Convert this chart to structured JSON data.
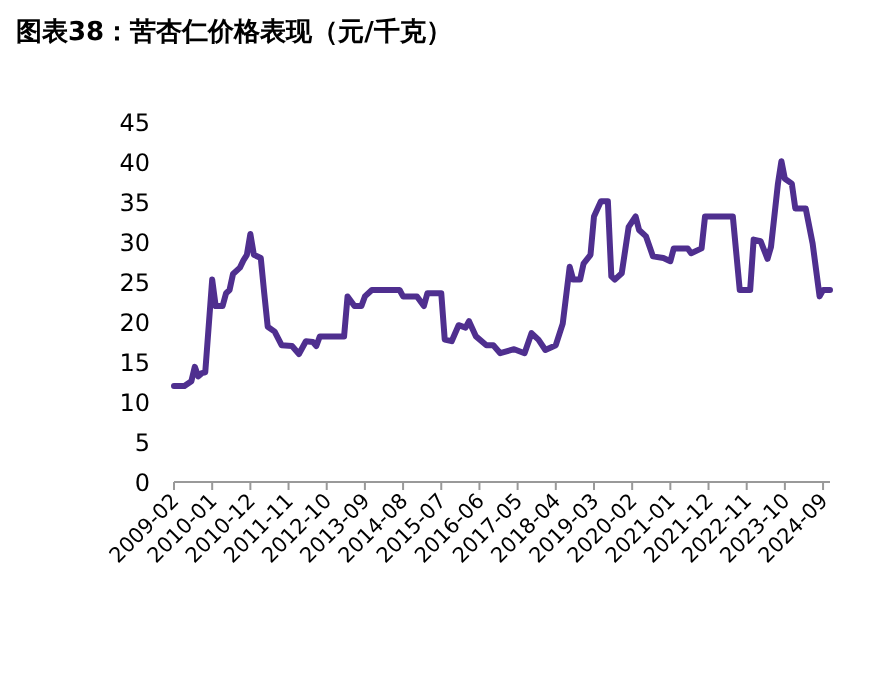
{
  "chart_data": {
    "type": "line",
    "title": "图表38：苦杏仁价格表现（元/千克）",
    "x": [
      "2009-02",
      "2009-05",
      "2009-07",
      "2009-08",
      "2009-09",
      "2009-10",
      "2009-11",
      "2010-01",
      "2010-02",
      "2010-04",
      "2010-05",
      "2010-06",
      "2010-07",
      "2010-09",
      "2010-10",
      "2010-11",
      "2010-12",
      "2011-01",
      "2011-03",
      "2011-04",
      "2011-05",
      "2011-07",
      "2011-09",
      "2011-12",
      "2012-02",
      "2012-04",
      "2012-06",
      "2012-07",
      "2012-08",
      "2013-03",
      "2013-04",
      "2013-06",
      "2013-08",
      "2013-09",
      "2013-11",
      "2014-07",
      "2014-08",
      "2014-12",
      "2015-02",
      "2015-03",
      "2015-07",
      "2015-08",
      "2015-10",
      "2015-12",
      "2016-02",
      "2016-03",
      "2016-05",
      "2016-08",
      "2016-10",
      "2016-12",
      "2017-04",
      "2017-07",
      "2017-09",
      "2017-11",
      "2018-01",
      "2018-04",
      "2018-06",
      "2018-08",
      "2018-09",
      "2018-11",
      "2018-12",
      "2019-02",
      "2019-03",
      "2019-05",
      "2019-07",
      "2019-08",
      "2019-09",
      "2019-11",
      "2019-12",
      "2020-01",
      "2020-03",
      "2020-04",
      "2020-06",
      "2020-08",
      "2020-11",
      "2021-01",
      "2021-02",
      "2021-06",
      "2021-07",
      "2021-10",
      "2021-11",
      "2022-07",
      "2022-09",
      "2022-12",
      "2023-01",
      "2023-03",
      "2023-05",
      "2023-06",
      "2023-08",
      "2023-09",
      "2023-10",
      "2023-12",
      "2024-01",
      "2024-04",
      "2024-06",
      "2024-08",
      "2024-09",
      "2024-11"
    ],
    "series": [
      {
        "color": "#4f2f8f",
        "values": [
          12,
          12,
          12.6,
          14.4,
          13.2,
          13.6,
          13.7,
          25.3,
          22,
          22,
          23.6,
          24,
          26,
          26.8,
          27.7,
          28.4,
          31,
          28.4,
          28,
          23.6,
          19.4,
          18.8,
          17.1,
          17,
          16,
          17.6,
          17.5,
          17,
          18.2,
          18.2,
          23.2,
          22,
          22,
          23.2,
          24,
          24,
          23.2,
          23.2,
          22,
          23.6,
          23.6,
          17.8,
          17.6,
          19.6,
          19.3,
          20.1,
          18.2,
          17.1,
          17.1,
          16.1,
          16.6,
          16.1,
          18.6,
          17.8,
          16.5,
          17.1,
          19.8,
          26.9,
          25.3,
          25.3,
          27.3,
          28.4,
          33.2,
          35.1,
          35.1,
          25.7,
          25.3,
          26.1,
          29,
          31.9,
          33.2,
          31.5,
          30.7,
          28.2,
          28,
          27.6,
          29.2,
          29.2,
          28.6,
          29.2,
          33.2,
          33.2,
          24,
          24,
          30.3,
          30.1,
          27.9,
          29.4,
          37.3,
          40.1,
          37.9,
          37.3,
          34.2,
          34.2,
          29.8,
          23.2,
          24,
          24
        ]
      }
    ],
    "xlim": [
      "2009-02",
      "2024-11"
    ],
    "xticks": [
      "2009-02",
      "2010-01",
      "2010-12",
      "2011-11",
      "2012-10",
      "2013-09",
      "2014-08",
      "2015-07",
      "2016-06",
      "2017-05",
      "2018-04",
      "2019-03",
      "2020-02",
      "2021-01",
      "2021-12",
      "2022-11",
      "2023-10",
      "2024-09"
    ],
    "ylim": [
      0,
      45
    ],
    "yticks": [
      0,
      5,
      10,
      15,
      20,
      25,
      30,
      35,
      40,
      45
    ],
    "grid": false,
    "marker": "none",
    "line_style": "solid"
  }
}
